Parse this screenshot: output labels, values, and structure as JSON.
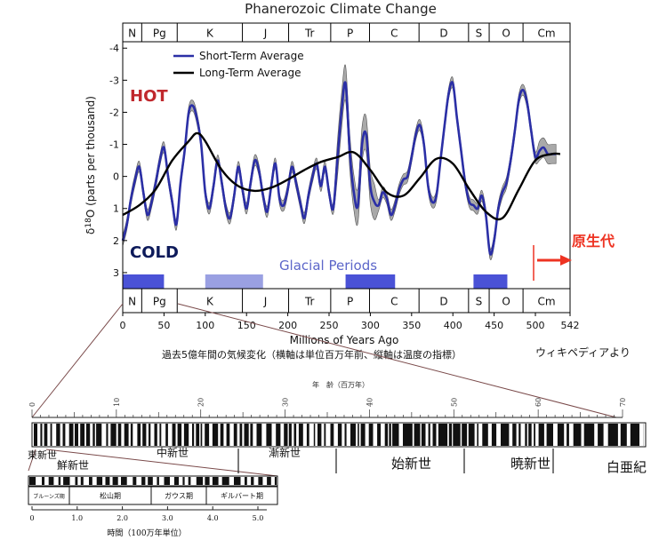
{
  "title": "Phanerozoic Climate Change",
  "chart_data": [
    {
      "type": "line",
      "title": "Phanerozoic Climate Change",
      "xlabel": "Millions of Years Ago",
      "ylabel": "δ18O (parts per thousand)",
      "ylabel_main": "δ",
      "ylabel_sup": "18",
      "ylabel_rest": "O (parts per thousand)",
      "xlim": [
        0,
        542
      ],
      "ylim": [
        3.5,
        -4.2
      ],
      "y_inverted": true,
      "grid": false,
      "legend_position": "top-left",
      "x_ticks": [
        0,
        50,
        100,
        150,
        200,
        250,
        300,
        350,
        400,
        450,
        500,
        542
      ],
      "y_ticks": [
        3,
        2,
        1,
        0,
        -1,
        -2,
        -3,
        -4
      ],
      "period_labels": [
        "N",
        "Pg",
        "K",
        "J",
        "Tr",
        "P",
        "C",
        "D",
        "S",
        "O",
        "Cm"
      ],
      "period_bounds": [
        0,
        23,
        66,
        145,
        201,
        252,
        299,
        359,
        419,
        444,
        485,
        542
      ],
      "annotations": {
        "hot": "HOT",
        "cold": "COLD",
        "glacial": "Glacial Periods"
      },
      "colors": {
        "short": "#2b2fa6",
        "long": "#000000",
        "band": "#a9a9a9",
        "hot": "#c0282d",
        "cold": "#0d1a5a",
        "glacial_dark": "#4a52d6",
        "glacial_light": "#9aa0e2",
        "glacial_text": "#5c66c9"
      },
      "glacial_periods": [
        {
          "start": 0,
          "end": 50,
          "shade": "dark"
        },
        {
          "start": 100,
          "end": 170,
          "shade": "light"
        },
        {
          "start": 270,
          "end": 330,
          "shade": "dark"
        },
        {
          "start": 425,
          "end": 466,
          "shade": "dark"
        }
      ],
      "series": [
        {
          "name": "Short-Term Average",
          "x": [
            0,
            5,
            10,
            15,
            20,
            25,
            30,
            35,
            40,
            45,
            50,
            55,
            60,
            65,
            70,
            75,
            80,
            85,
            90,
            95,
            100,
            105,
            110,
            115,
            120,
            125,
            130,
            135,
            140,
            145,
            150,
            155,
            160,
            165,
            170,
            175,
            180,
            185,
            190,
            195,
            200,
            205,
            210,
            215,
            220,
            225,
            230,
            235,
            240,
            245,
            250,
            255,
            260,
            265,
            270,
            275,
            280,
            285,
            290,
            295,
            300,
            305,
            310,
            315,
            320,
            325,
            330,
            335,
            340,
            345,
            350,
            355,
            360,
            365,
            370,
            375,
            380,
            385,
            390,
            395,
            400,
            405,
            410,
            415,
            420,
            425,
            430,
            435,
            440,
            445,
            450,
            455,
            460,
            465,
            470,
            475,
            480,
            485,
            490,
            495,
            500,
            505,
            510,
            515,
            520,
            525
          ],
          "y": [
            2.0,
            1.5,
            0.7,
            0.1,
            -0.3,
            0.5,
            1.2,
            0.8,
            0.2,
            -0.5,
            -0.9,
            0.0,
            0.8,
            1.5,
            0.2,
            -0.8,
            -2.0,
            -2.2,
            -1.8,
            -1.0,
            0.5,
            1.0,
            0.3,
            -0.5,
            0.2,
            1.0,
            1.3,
            0.6,
            -0.3,
            0.4,
            1.0,
            0.2,
            -0.5,
            -0.2,
            0.6,
            1.1,
            0.3,
            -0.4,
            0.7,
            0.9,
            0.4,
            -0.3,
            0.2,
            0.8,
            1.3,
            0.6,
            0.0,
            -0.4,
            0.3,
            -0.3,
            0.5,
            1.0,
            -0.5,
            -2.0,
            -2.9,
            -0.8,
            0.5,
            0.9,
            -1.0,
            -1.3,
            0.3,
            0.8,
            0.9,
            0.5,
            0.7,
            1.2,
            0.9,
            0.4,
            0.1,
            0.0,
            -0.6,
            -1.3,
            -1.6,
            -1.0,
            0.3,
            0.8,
            0.6,
            -0.5,
            -1.6,
            -2.6,
            -2.9,
            -1.8,
            -0.8,
            0.2,
            0.8,
            0.9,
            1.0,
            0.6,
            1.2,
            2.4,
            2.0,
            1.0,
            0.5,
            0.2,
            -0.5,
            -1.4,
            -2.4,
            -2.7,
            -2.3,
            -1.4,
            -0.6,
            -0.8,
            -0.9,
            -0.7,
            -0.7,
            -0.7
          ]
        },
        {
          "name": "Long-Term Average",
          "x": [
            0,
            20,
            40,
            60,
            80,
            90,
            100,
            120,
            140,
            160,
            180,
            200,
            220,
            240,
            260,
            280,
            300,
            320,
            340,
            360,
            380,
            400,
            420,
            440,
            460,
            480,
            500,
            520,
            530
          ],
          "y": [
            1.2,
            0.9,
            0.4,
            -0.5,
            -1.1,
            -1.35,
            -1.1,
            -0.2,
            0.3,
            0.45,
            0.35,
            0.1,
            -0.2,
            -0.45,
            -0.6,
            -0.75,
            -0.2,
            0.5,
            0.6,
            0.05,
            -0.55,
            -0.4,
            0.4,
            1.1,
            1.3,
            0.4,
            -0.5,
            -0.7,
            -0.7
          ]
        }
      ]
    },
    {
      "type": "other",
      "scale_label": "年　齢（百万年）",
      "ticks": [
        "0",
        "10",
        "20",
        "30",
        "40",
        "50",
        "60",
        "70"
      ],
      "epochs": [
        "東新世",
        "鮮新世",
        "中新世",
        "漸新世",
        "始新世",
        "暁新世",
        "白亜紀"
      ],
      "inset": {
        "periods": [
          "ブルーンズ期",
          "松山期",
          "ガウス期",
          "ギルバート期"
        ],
        "ticks": [
          "0",
          "1.0",
          "2.0",
          "3.0",
          "4.0",
          "5.0"
        ],
        "xlabel": "時間（100万年単位）"
      }
    }
  ],
  "annotations": {
    "paleozoic_label": "原生代",
    "caption": "過去5億年間の気候変化（横軸は単位百万年前、縦軸は温度の指標）",
    "credit": "ウィキペディアより"
  }
}
